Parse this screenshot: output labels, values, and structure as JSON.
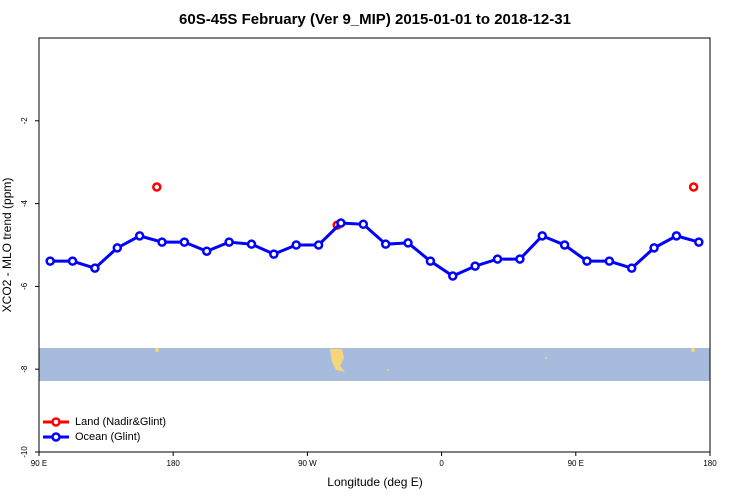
{
  "chart_data": {
    "type": "line",
    "title": "60S-45S February (Ver 9_MIP)   2015-01-01 to 2018-12-31",
    "xlabel": "Longitude (deg E)",
    "ylabel": "XCO2 - MLO trend (ppm)",
    "xlim": [
      90,
      540
    ],
    "ylim": [
      -10,
      0
    ],
    "xticks": [
      {
        "value": 90,
        "label": "90 E"
      },
      180,
      {
        "value": 270,
        "label": "90 W"
      },
      {
        "value": 360,
        "label": "0"
      },
      {
        "value": 450,
        "label": "90 E"
      },
      {
        "value": 540,
        "label": "180"
      }
    ],
    "yticks": [
      -10,
      -8,
      -6,
      -4,
      -2
    ],
    "legend": "bottom-left",
    "series": [
      {
        "name": "Land (Nadir&Glint)",
        "color": "#ff0000",
        "x": [
          169,
          290,
          529
        ],
        "values": [
          -3.6,
          -4.52,
          -3.6
        ]
      },
      {
        "name": "Ocean (Glint)",
        "color": "#0000ff",
        "x": [
          97.5,
          112.5,
          127.5,
          142.5,
          157.5,
          172.5,
          187.5,
          202.5,
          217.5,
          232.5,
          247.5,
          262.5,
          277.5,
          292.5,
          307.5,
          322.5,
          337.5,
          352.5,
          367.5,
          382.5,
          397.5,
          412.5,
          427.5,
          442.5,
          457.5,
          472.5,
          487.5,
          502.5,
          517.5,
          532.5
        ],
        "values": [
          -5.39,
          -5.39,
          -5.56,
          -5.07,
          -4.78,
          -4.93,
          -4.93,
          -5.15,
          -4.93,
          -4.98,
          -5.22,
          -5.0,
          -5.0,
          -4.47,
          -4.5,
          -4.98,
          -4.95,
          -5.39,
          -5.75,
          -5.51,
          -5.34,
          -5.34,
          -4.78,
          -5.0,
          -5.39,
          -5.39,
          -5.56,
          -5.07,
          -4.78,
          -4.93
        ]
      }
    ]
  }
}
